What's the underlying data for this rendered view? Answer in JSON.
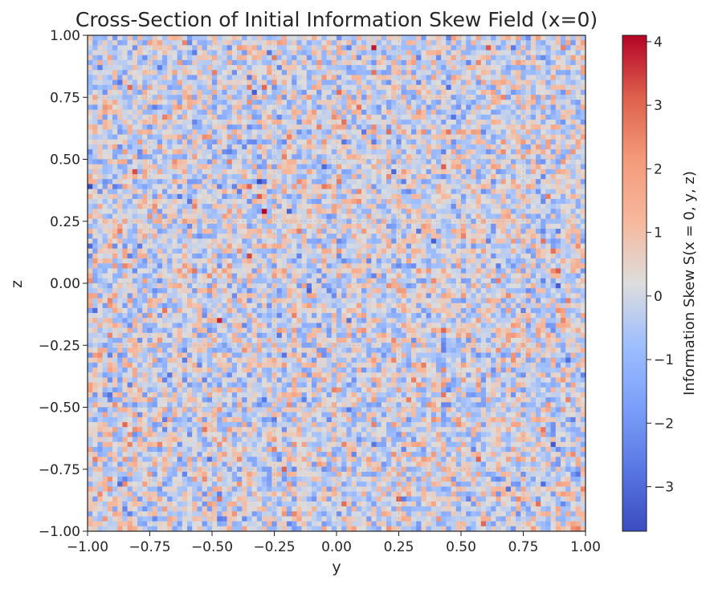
{
  "chart_data": {
    "type": "heatmap",
    "title": "Cross-Section of Initial Information Skew Field (x=0)",
    "xlabel": "y",
    "ylabel": "z",
    "xlim": [
      -1.0,
      1.0
    ],
    "ylim": [
      -1.0,
      1.0
    ],
    "x_ticks": [
      "−1.00",
      "−0.75",
      "−0.50",
      "−0.25",
      "0.00",
      "0.25",
      "0.50",
      "0.75",
      "1.00"
    ],
    "y_ticks": [
      "1.00",
      "0.75",
      "0.50",
      "0.25",
      "0.00",
      "−0.25",
      "−0.50",
      "−0.75",
      "−1.00"
    ],
    "grid": true,
    "grid_resolution": [
      100,
      100
    ],
    "colormap": "coolwarm",
    "colorbar": {
      "label": "Information Skew S(x = 0, y, z)",
      "min": -3.7,
      "max": 4.1,
      "ticks": [
        "4",
        "3",
        "2",
        "1",
        "0",
        "−1",
        "−2",
        "−3"
      ],
      "tick_values": [
        4,
        3,
        2,
        1,
        0,
        -1,
        -2,
        -3
      ]
    },
    "value_distribution": "approximately standard normal random noise",
    "notable_points": [
      {
        "y": 0.14,
        "z": 0.95,
        "value": 3.9
      },
      {
        "y": -0.29,
        "z": 0.29,
        "value": 4.1
      },
      {
        "y": -0.34,
        "z": 0.12,
        "value": 3.4
      }
    ]
  }
}
